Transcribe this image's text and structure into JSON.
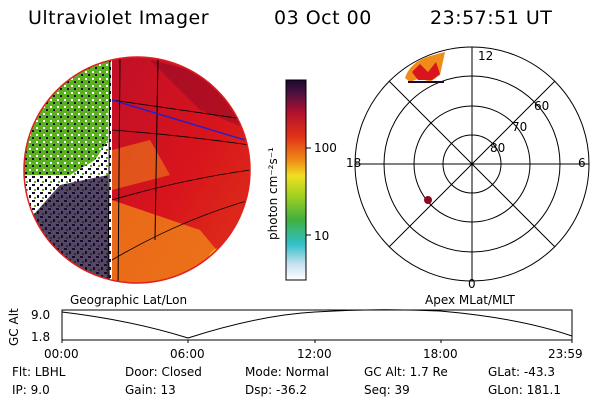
{
  "header": {
    "title": "Ultraviolet Imager",
    "date": "03 Oct 00",
    "time": "23:57:51 UT"
  },
  "colorbar": {
    "unit_label": "photon cm⁻²s⁻¹",
    "ticks": [
      "100",
      "10"
    ]
  },
  "polar_plot": {
    "mlt_labels": {
      "top": "12",
      "left": "18",
      "right": "6",
      "bottom": "0"
    },
    "mlat_labels": [
      "60",
      "70",
      "80"
    ]
  },
  "map_labels": {
    "left": "Geographic Lat/Lon",
    "right": "Apex MLat/MLT"
  },
  "altitude_plot": {
    "ylabel": "GC Alt",
    "yticks": [
      "9.0",
      "1.8"
    ],
    "xticks": [
      "00:00",
      "06:00",
      "12:00",
      "18:00",
      "23:59"
    ]
  },
  "info_rows": [
    [
      {
        "key": "Flt:",
        "value": "LBHL"
      },
      {
        "key": "Door:",
        "value": "Closed"
      },
      {
        "key": "Mode:",
        "value": "Normal"
      },
      {
        "key": "GC Alt:",
        "value": "1.7 Re"
      },
      {
        "key": "GLat:",
        "value": "-43.3"
      }
    ],
    [
      {
        "key": "IP:",
        "value": "9.0"
      },
      {
        "key": "Gain:",
        "value": "13"
      },
      {
        "key": "Dsp:",
        "value": "-36.2"
      },
      {
        "key": "Seq:",
        "value": "39"
      },
      {
        "key": "GLon:",
        "value": "181.1"
      }
    ]
  ],
  "colors": {
    "scale_dark": "#1a0a30",
    "scale_red": "#d8141c",
    "scale_orange": "#f08a18",
    "scale_yellow": "#f0e020",
    "scale_green": "#5ab020",
    "scale_cyan": "#30c0c8",
    "overlay_blue": "#2020d0"
  }
}
